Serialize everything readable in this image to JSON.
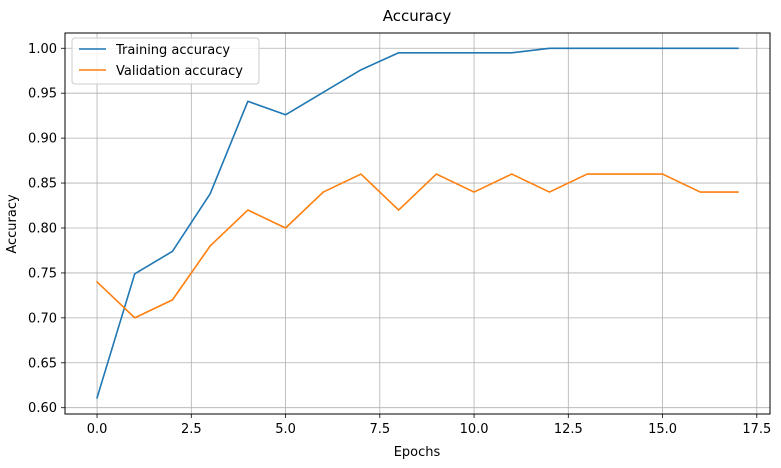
{
  "chart_data": {
    "type": "line",
    "title": "Accuracy",
    "xlabel": "Epochs",
    "ylabel": "Accuracy",
    "x": [
      0,
      1,
      2,
      3,
      4,
      5,
      6,
      7,
      8,
      9,
      10,
      11,
      12,
      13,
      14,
      15,
      16,
      17
    ],
    "xlim": [
      -0.85,
      17.85
    ],
    "ylim": [
      0.593,
      1.017
    ],
    "xticks": [
      0.0,
      2.5,
      5.0,
      7.5,
      10.0,
      12.5,
      15.0,
      17.5
    ],
    "xtick_labels": [
      "0.0",
      "2.5",
      "5.0",
      "7.5",
      "10.0",
      "12.5",
      "15.0",
      "17.5"
    ],
    "yticks": [
      0.6,
      0.65,
      0.7,
      0.75,
      0.8,
      0.85,
      0.9,
      0.95,
      1.0
    ],
    "ytick_labels": [
      "0.60",
      "0.65",
      "0.70",
      "0.75",
      "0.80",
      "0.85",
      "0.90",
      "0.95",
      "1.00"
    ],
    "grid": true,
    "legend": "upper-left",
    "series": [
      {
        "name": "Training accuracy",
        "color": "#1f77b4",
        "values": [
          0.611,
          0.749,
          0.774,
          0.838,
          0.941,
          0.926,
          0.951,
          0.976,
          0.995,
          0.995,
          0.995,
          0.995,
          1.0,
          1.0,
          1.0,
          1.0,
          1.0,
          1.0
        ]
      },
      {
        "name": "Validation accuracy",
        "color": "#ff7f0e",
        "values": [
          0.74,
          0.7,
          0.72,
          0.78,
          0.82,
          0.8,
          0.84,
          0.86,
          0.82,
          0.86,
          0.84,
          0.86,
          0.84,
          0.86,
          0.86,
          0.86,
          0.84,
          0.84
        ]
      }
    ]
  }
}
